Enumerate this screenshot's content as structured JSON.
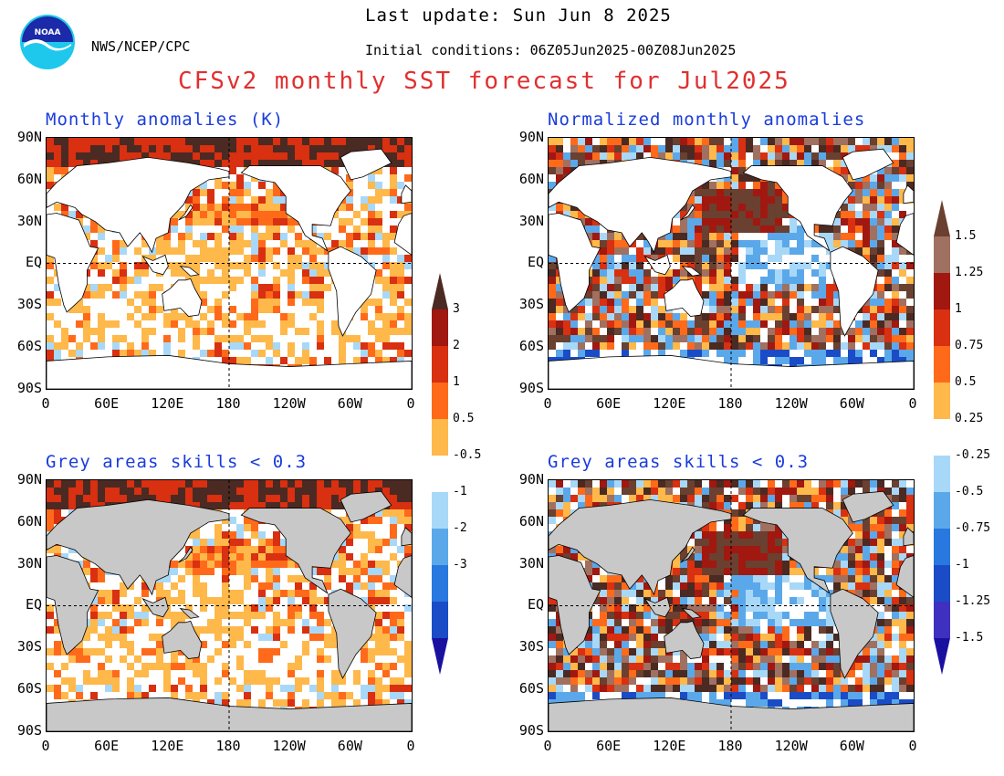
{
  "header": {
    "last_update": "Last update: Sun Jun 8 2025",
    "org": "NWS/NCEP/CPC",
    "initial_conditions": "Initial conditions: 06Z05Jun2025-00Z08Jun2025",
    "title": "CFSv2 monthly SST forecast for Jul2025",
    "logo_text": "NOAA"
  },
  "panels": [
    {
      "title": "Monthly anomalies (K)"
    },
    {
      "title": "Normalized monthly anomalies"
    },
    {
      "title": "Grey areas skills < 0.3"
    },
    {
      "title": "Grey areas skills < 0.3"
    }
  ],
  "axes": {
    "lat_labels": [
      "90N",
      "60N",
      "30N",
      "EQ",
      "30S",
      "60S",
      "90S"
    ],
    "lon_labels": [
      "0",
      "60E",
      "120E",
      "180",
      "120W",
      "60W",
      "0"
    ]
  },
  "colorbar_left": {
    "labels": [
      "3",
      "2",
      "1",
      "0.5",
      "-0.5",
      "-1",
      "-2",
      "-3"
    ],
    "colors": [
      "#4a2a22",
      "#a01810",
      "#d83010",
      "#ff6a1a",
      "#ffb84a",
      "#ffffff",
      "#a8d8f8",
      "#5aa8ea",
      "#2878e0",
      "#1a4cc8",
      "#1a10a0"
    ]
  },
  "colorbar_right": {
    "labels": [
      "1.5",
      "1.25",
      "1",
      "0.75",
      "0.5",
      "0.25",
      "-0.25",
      "-0.5",
      "-0.75",
      "-1",
      "-1.25",
      "-1.5"
    ],
    "colors": [
      "#6a4030",
      "#a07060",
      "#a01810",
      "#d83010",
      "#ff6a1a",
      "#ffb84a",
      "#ffffff",
      "#a8d8f8",
      "#5aa8ea",
      "#2878e0",
      "#1a4cc8",
      "#4030c0",
      "#1a10a0"
    ]
  },
  "colors": {
    "title": "#e03030",
    "panel_title": "#1a3cdc",
    "land": "#ffffff",
    "grey_skill": "#c8c8c8"
  }
}
